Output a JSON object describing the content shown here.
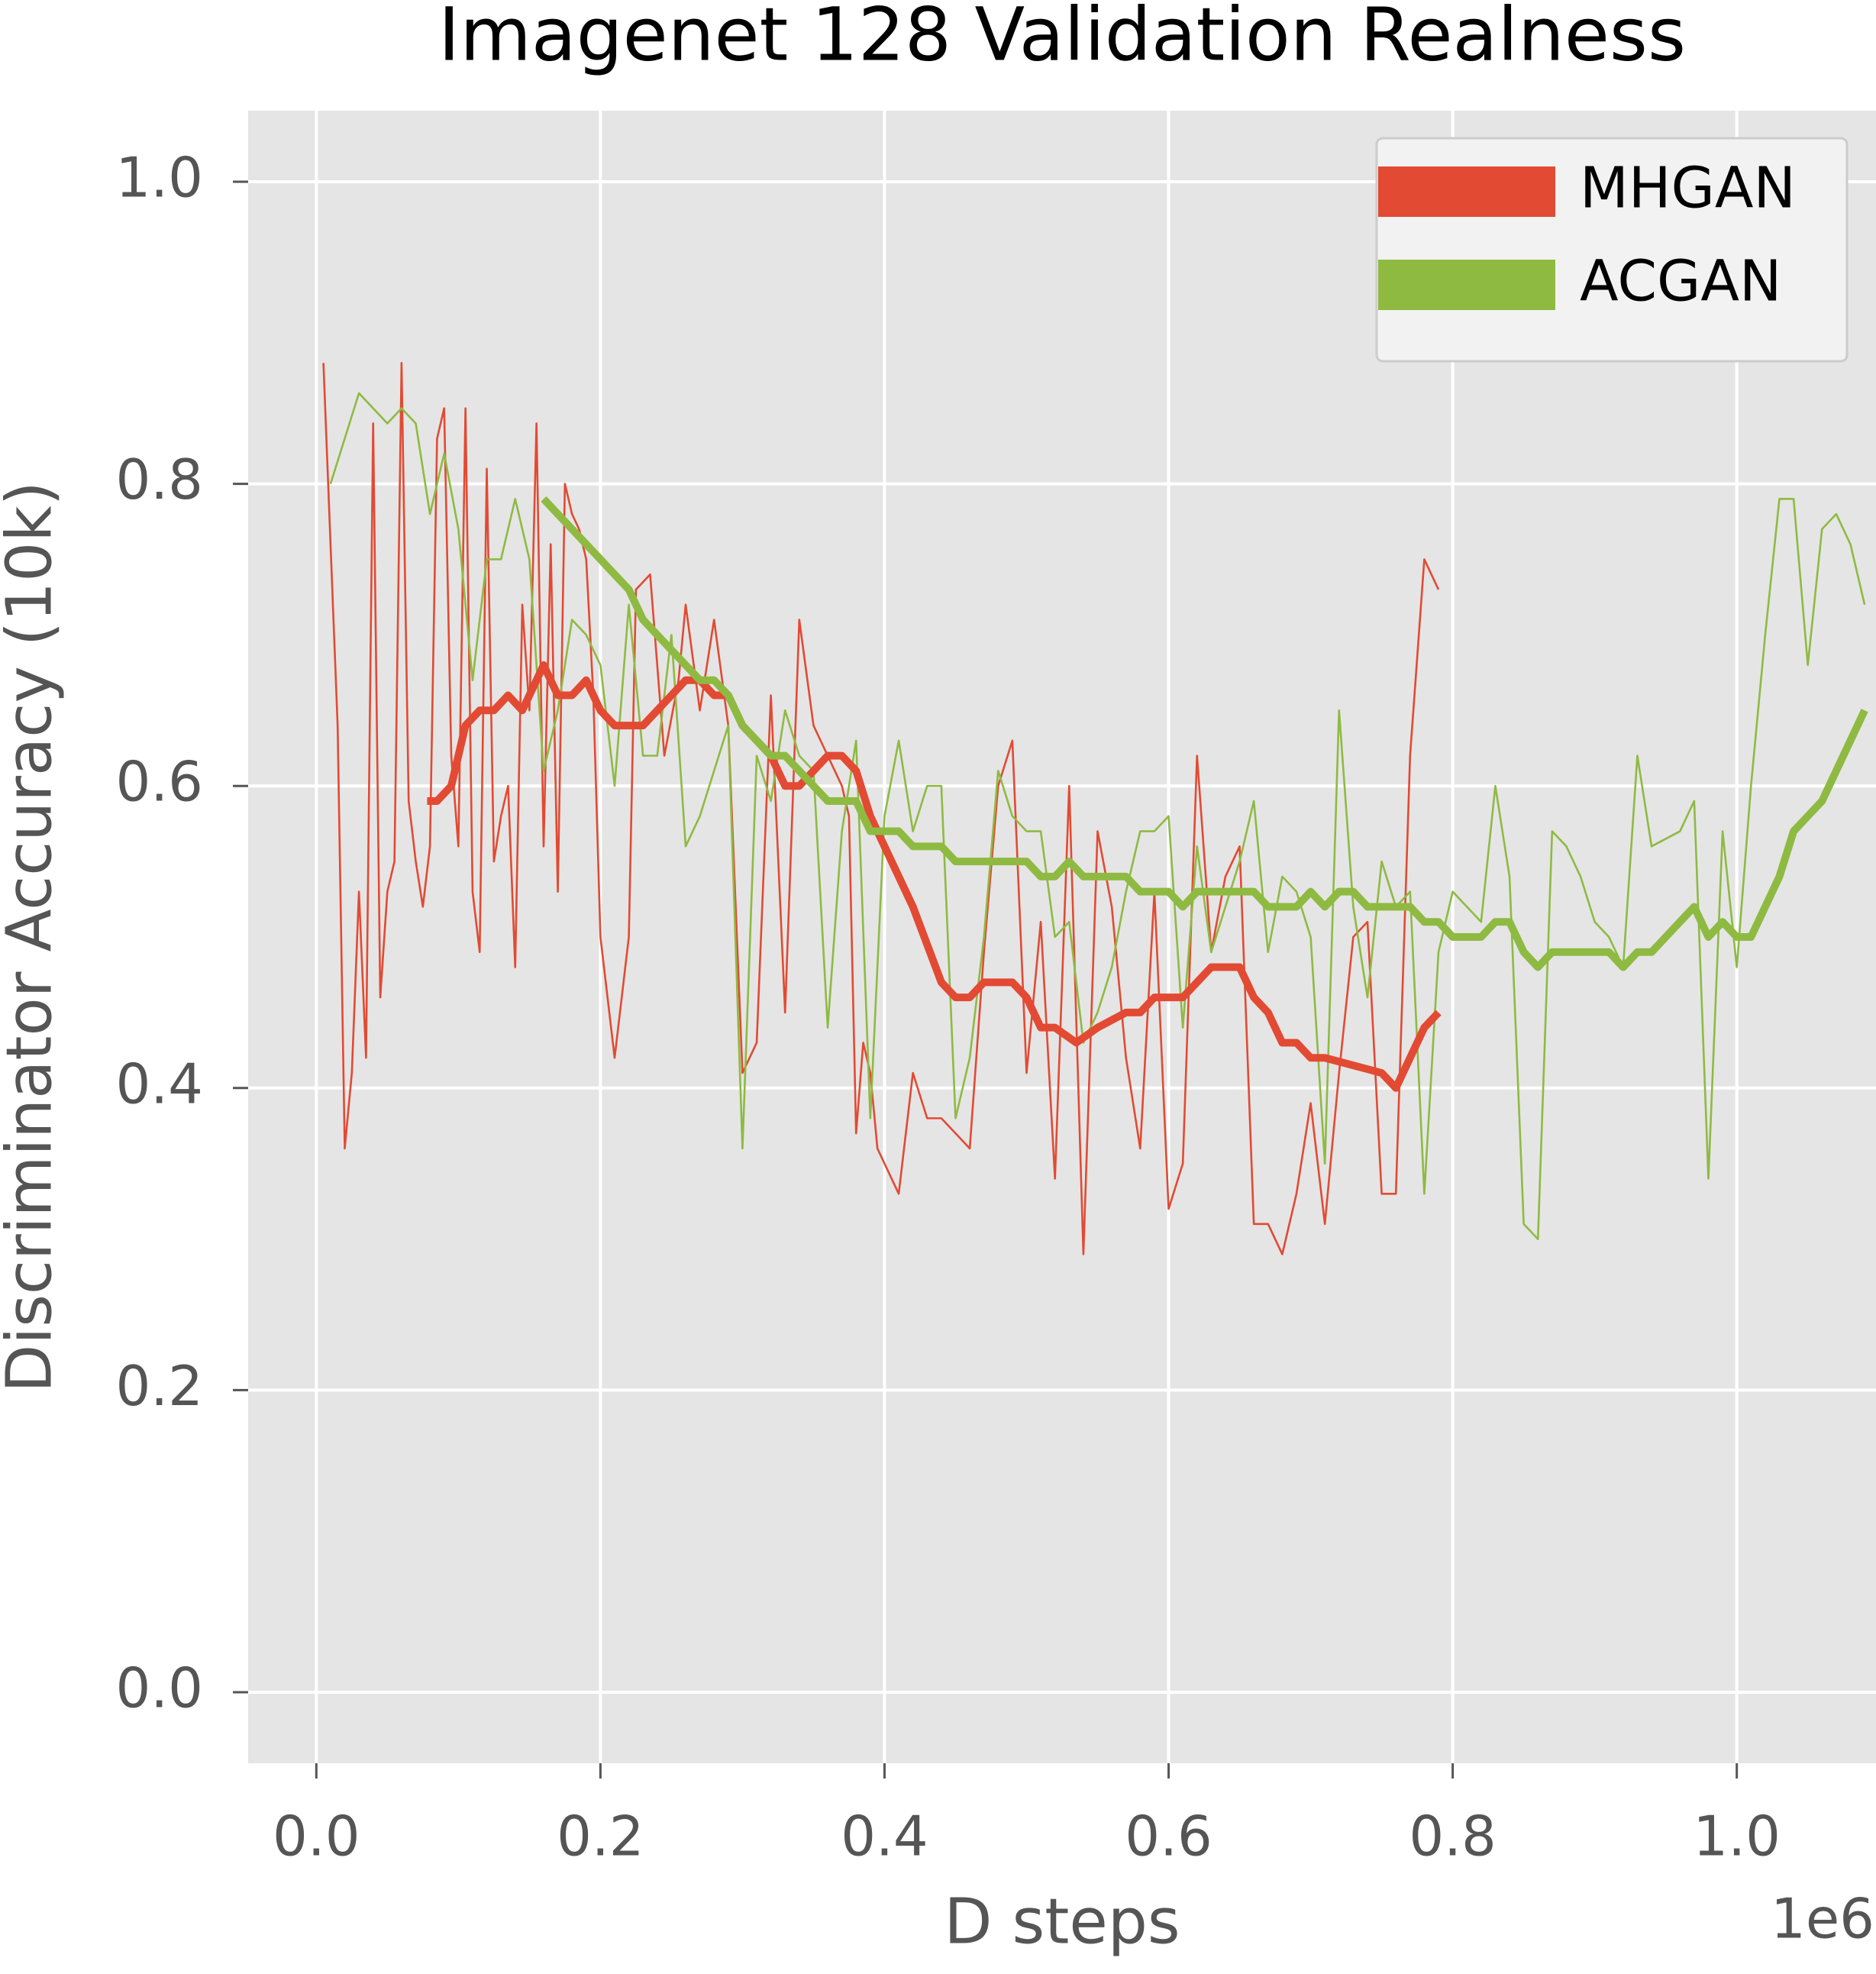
{
  "chart_data": {
    "type": "line",
    "title": "Imagenet 128 Validation Realness",
    "xlabel": "D steps",
    "ylabel": "Discriminator Accuracy (10k)",
    "x_offset_label": "1e6",
    "xlim": [
      -0.048,
      1.098
    ],
    "ylim": [
      -0.047,
      1.047
    ],
    "xticks": [
      {
        "value": 0,
        "label": "0.0"
      },
      0.2,
      0.4,
      0.6,
      0.8,
      {
        "value": 1,
        "label": "1.0"
      }
    ],
    "yticks": [
      {
        "value": 0,
        "label": "0.0"
      },
      0.2,
      0.4,
      0.6,
      0.8,
      {
        "value": 1,
        "label": "1.0"
      }
    ],
    "grid": true,
    "legend": "upper right",
    "background": "#e5e5e5",
    "series": [
      {
        "name": "MHGAN",
        "color": "#e24a33",
        "x": [
          0.005,
          0.015,
          0.02,
          0.025,
          0.03,
          0.035,
          0.04,
          0.045,
          0.05,
          0.055,
          0.06,
          0.065,
          0.07,
          0.075,
          0.08,
          0.085,
          0.09,
          0.095,
          0.1,
          0.105,
          0.11,
          0.115,
          0.12,
          0.125,
          0.13,
          0.135,
          0.14,
          0.145,
          0.15,
          0.155,
          0.16,
          0.165,
          0.17,
          0.175,
          0.18,
          0.185,
          0.19,
          0.195,
          0.2,
          0.21,
          0.22,
          0.225,
          0.235,
          0.24,
          0.245,
          0.255,
          0.26,
          0.27,
          0.28,
          0.29,
          0.3,
          0.31,
          0.32,
          0.33,
          0.34,
          0.35,
          0.36,
          0.37,
          0.375,
          0.38,
          0.385,
          0.39,
          0.395,
          0.4,
          0.41,
          0.42,
          0.43,
          0.44,
          0.45,
          0.46,
          0.47,
          0.48,
          0.49,
          0.5,
          0.51,
          0.52,
          0.53,
          0.54,
          0.55,
          0.56,
          0.57,
          0.58,
          0.59,
          0.6,
          0.61,
          0.62,
          0.63,
          0.64,
          0.65,
          0.66,
          0.67,
          0.68,
          0.69,
          0.7,
          0.71,
          0.72,
          0.73,
          0.74,
          0.75,
          0.76,
          0.77,
          0.78,
          0.79
        ],
        "values": [
          0.88,
          0.64,
          0.36,
          0.41,
          0.53,
          0.42,
          0.84,
          0.46,
          0.53,
          0.55,
          0.88,
          0.59,
          0.55,
          0.52,
          0.56,
          0.83,
          0.85,
          0.62,
          0.56,
          0.85,
          0.53,
          0.49,
          0.81,
          0.55,
          0.58,
          0.6,
          0.48,
          0.72,
          0.65,
          0.84,
          0.56,
          0.76,
          0.53,
          0.8,
          0.78,
          0.77,
          0.75,
          0.66,
          0.5,
          0.42,
          0.5,
          0.73,
          0.74,
          0.68,
          0.62,
          0.67,
          0.72,
          0.65,
          0.71,
          0.64,
          0.41,
          0.43,
          0.66,
          0.45,
          0.71,
          0.64,
          0.62,
          0.6,
          0.58,
          0.37,
          0.43,
          0.41,
          0.36,
          0.35,
          0.33,
          0.41,
          0.38,
          0.38,
          0.37,
          0.36,
          0.49,
          0.6,
          0.63,
          0.41,
          0.51,
          0.34,
          0.6,
          0.29,
          0.57,
          0.52,
          0.42,
          0.36,
          0.53,
          0.32,
          0.35,
          0.62,
          0.49,
          0.54,
          0.56,
          0.31,
          0.31,
          0.29,
          0.33,
          0.39,
          0.31,
          0.41,
          0.5,
          0.51,
          0.33,
          0.33,
          0.62,
          0.75,
          0.73
        ],
        "smoothed": {
          "x": [
            0.078,
            0.085,
            0.095,
            0.105,
            0.115,
            0.125,
            0.135,
            0.145,
            0.155,
            0.16,
            0.17,
            0.18,
            0.19,
            0.2,
            0.21,
            0.22,
            0.23,
            0.24,
            0.25,
            0.26,
            0.27,
            0.28,
            0.29,
            0.3,
            0.31,
            0.32,
            0.33,
            0.34,
            0.35,
            0.36,
            0.37,
            0.38,
            0.39,
            0.4,
            0.42,
            0.44,
            0.45,
            0.46,
            0.47,
            0.49,
            0.5,
            0.51,
            0.52,
            0.535,
            0.55,
            0.57,
            0.58,
            0.59,
            0.61,
            0.62,
            0.63,
            0.65,
            0.66,
            0.67,
            0.68,
            0.69,
            0.7,
            0.71,
            0.75,
            0.76,
            0.77,
            0.78,
            0.79
          ],
          "values": [
            0.59,
            0.59,
            0.6,
            0.64,
            0.65,
            0.65,
            0.66,
            0.65,
            0.67,
            0.68,
            0.66,
            0.66,
            0.67,
            0.65,
            0.64,
            0.64,
            0.64,
            0.65,
            0.66,
            0.67,
            0.67,
            0.66,
            0.66,
            0.64,
            0.63,
            0.62,
            0.6,
            0.6,
            0.61,
            0.62,
            0.62,
            0.61,
            0.58,
            0.56,
            0.52,
            0.47,
            0.46,
            0.46,
            0.47,
            0.47,
            0.46,
            0.44,
            0.44,
            0.43,
            0.44,
            0.45,
            0.45,
            0.46,
            0.46,
            0.47,
            0.48,
            0.48,
            0.46,
            0.45,
            0.43,
            0.43,
            0.42,
            0.42,
            0.41,
            0.4,
            0.42,
            0.44,
            0.45
          ]
        }
      },
      {
        "name": "ACGAN",
        "color": "#8eba42",
        "x": [
          0.01,
          0.02,
          0.03,
          0.04,
          0.05,
          0.06,
          0.07,
          0.08,
          0.09,
          0.1,
          0.11,
          0.12,
          0.13,
          0.14,
          0.15,
          0.16,
          0.17,
          0.18,
          0.19,
          0.2,
          0.21,
          0.22,
          0.23,
          0.24,
          0.25,
          0.26,
          0.27,
          0.28,
          0.29,
          0.3,
          0.31,
          0.32,
          0.33,
          0.34,
          0.35,
          0.36,
          0.37,
          0.38,
          0.39,
          0.4,
          0.41,
          0.42,
          0.43,
          0.44,
          0.45,
          0.46,
          0.47,
          0.48,
          0.49,
          0.5,
          0.51,
          0.52,
          0.53,
          0.54,
          0.55,
          0.56,
          0.57,
          0.58,
          0.59,
          0.6,
          0.61,
          0.62,
          0.63,
          0.64,
          0.65,
          0.66,
          0.67,
          0.68,
          0.69,
          0.7,
          0.71,
          0.72,
          0.73,
          0.74,
          0.75,
          0.76,
          0.77,
          0.78,
          0.79,
          0.8,
          0.82,
          0.83,
          0.84,
          0.85,
          0.86,
          0.87,
          0.88,
          0.89,
          0.9,
          0.91,
          0.92,
          0.93,
          0.94,
          0.96,
          0.97,
          0.98,
          0.99,
          1.0,
          1.01,
          1.02,
          1.03,
          1.04,
          1.05,
          1.06,
          1.07,
          1.08,
          1.09
        ],
        "values": [
          0.8,
          0.83,
          0.86,
          0.85,
          0.84,
          0.85,
          0.84,
          0.78,
          0.82,
          0.77,
          0.67,
          0.75,
          0.75,
          0.79,
          0.75,
          0.61,
          0.65,
          0.71,
          0.7,
          0.68,
          0.6,
          0.72,
          0.62,
          0.62,
          0.7,
          0.56,
          0.58,
          0.61,
          0.64,
          0.36,
          0.62,
          0.59,
          0.65,
          0.62,
          0.61,
          0.44,
          0.57,
          0.63,
          0.38,
          0.58,
          0.63,
          0.57,
          0.6,
          0.6,
          0.38,
          0.42,
          0.5,
          0.61,
          0.58,
          0.57,
          0.57,
          0.5,
          0.51,
          0.43,
          0.45,
          0.48,
          0.53,
          0.57,
          0.57,
          0.58,
          0.44,
          0.56,
          0.49,
          0.52,
          0.55,
          0.59,
          0.49,
          0.54,
          0.53,
          0.5,
          0.35,
          0.65,
          0.52,
          0.46,
          0.55,
          0.52,
          0.53,
          0.33,
          0.49,
          0.53,
          0.51,
          0.6,
          0.54,
          0.31,
          0.3,
          0.57,
          0.56,
          0.54,
          0.51,
          0.5,
          0.48,
          0.62,
          0.56,
          0.57,
          0.59,
          0.34,
          0.57,
          0.48,
          0.6,
          0.7,
          0.79,
          0.79,
          0.68,
          0.77,
          0.78,
          0.76,
          0.72
        ],
        "smoothed": {
          "x": [
            0.16,
            0.17,
            0.18,
            0.19,
            0.2,
            0.21,
            0.22,
            0.23,
            0.24,
            0.25,
            0.26,
            0.27,
            0.28,
            0.29,
            0.3,
            0.31,
            0.32,
            0.33,
            0.34,
            0.35,
            0.36,
            0.37,
            0.38,
            0.39,
            0.4,
            0.41,
            0.42,
            0.43,
            0.44,
            0.45,
            0.46,
            0.47,
            0.48,
            0.49,
            0.5,
            0.51,
            0.52,
            0.53,
            0.54,
            0.55,
            0.56,
            0.57,
            0.58,
            0.59,
            0.6,
            0.61,
            0.62,
            0.63,
            0.64,
            0.65,
            0.66,
            0.67,
            0.68,
            0.69,
            0.7,
            0.71,
            0.72,
            0.73,
            0.74,
            0.75,
            0.76,
            0.77,
            0.78,
            0.79,
            0.8,
            0.81,
            0.82,
            0.83,
            0.84,
            0.85,
            0.86,
            0.87,
            0.88,
            0.89,
            0.9,
            0.91,
            0.92,
            0.93,
            0.94,
            0.95,
            0.96,
            0.97,
            0.98,
            0.99,
            1.0,
            1.01,
            1.02,
            1.03,
            1.04,
            1.05,
            1.06,
            1.07,
            1.08,
            1.09
          ],
          "values": [
            0.79,
            0.78,
            0.77,
            0.76,
            0.75,
            0.74,
            0.73,
            0.71,
            0.7,
            0.69,
            0.68,
            0.67,
            0.67,
            0.66,
            0.64,
            0.63,
            0.62,
            0.62,
            0.61,
            0.6,
            0.59,
            0.59,
            0.59,
            0.57,
            0.57,
            0.57,
            0.56,
            0.56,
            0.56,
            0.55,
            0.55,
            0.55,
            0.55,
            0.55,
            0.55,
            0.54,
            0.54,
            0.55,
            0.54,
            0.54,
            0.54,
            0.54,
            0.53,
            0.53,
            0.53,
            0.52,
            0.53,
            0.53,
            0.53,
            0.53,
            0.53,
            0.52,
            0.52,
            0.52,
            0.53,
            0.52,
            0.53,
            0.53,
            0.52,
            0.52,
            0.52,
            0.52,
            0.51,
            0.51,
            0.5,
            0.5,
            0.5,
            0.51,
            0.51,
            0.49,
            0.48,
            0.49,
            0.49,
            0.49,
            0.49,
            0.49,
            0.48,
            0.49,
            0.49,
            0.5,
            0.51,
            0.52,
            0.5,
            0.51,
            0.5,
            0.5,
            0.52,
            0.54,
            0.57,
            0.58,
            0.59,
            0.61,
            0.63,
            0.65
          ]
        }
      }
    ]
  }
}
